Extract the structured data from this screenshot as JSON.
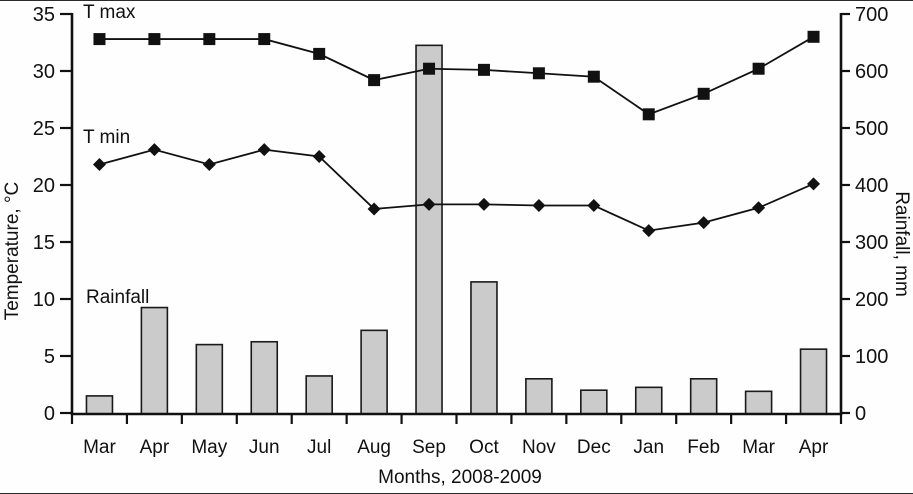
{
  "figure": {
    "annotations": {
      "tmax_label": "T max",
      "tmin_label": "T min",
      "rainfall_label": "Rainfall"
    },
    "colors": {
      "bar_fill": "#cbcbcb",
      "bar_stroke": "#1a1a1a",
      "line": "#111111",
      "text": "#111111",
      "background": "#fefefe"
    }
  },
  "chart_data": {
    "type": "combo-bar-line",
    "title": "",
    "x_label": "Months, 2008-2009",
    "categories": [
      "Mar",
      "Apr",
      "May",
      "Jun",
      "Jul",
      "Aug",
      "Sep",
      "Oct",
      "Nov",
      "Dec",
      "Jan",
      "Feb",
      "Mar",
      "Apr"
    ],
    "series": [
      {
        "name": "T max",
        "type": "line",
        "axis": "left",
        "marker": "square",
        "values": [
          32.8,
          32.8,
          32.8,
          32.8,
          31.5,
          29.2,
          30.2,
          30.1,
          29.8,
          29.5,
          26.2,
          28.0,
          30.2,
          33.0
        ]
      },
      {
        "name": "T min",
        "type": "line",
        "axis": "left",
        "marker": "diamond",
        "values": [
          21.8,
          23.1,
          21.8,
          23.1,
          22.5,
          17.9,
          18.3,
          18.3,
          18.2,
          18.2,
          16.0,
          16.7,
          18.0,
          20.1
        ]
      },
      {
        "name": "Rainfall",
        "type": "bar",
        "axis": "right",
        "values": [
          30,
          185,
          120,
          125,
          65,
          145,
          645,
          230,
          60,
          40,
          45,
          60,
          38,
          112
        ]
      }
    ],
    "left_axis": {
      "label": "Temperature,  °C",
      "min": 0,
      "max": 35,
      "step": 5
    },
    "right_axis": {
      "label": "Rainfall, mm",
      "min": 0,
      "max": 700,
      "step": 100
    },
    "grid": false,
    "legend_position": "in-plot-annotations"
  }
}
